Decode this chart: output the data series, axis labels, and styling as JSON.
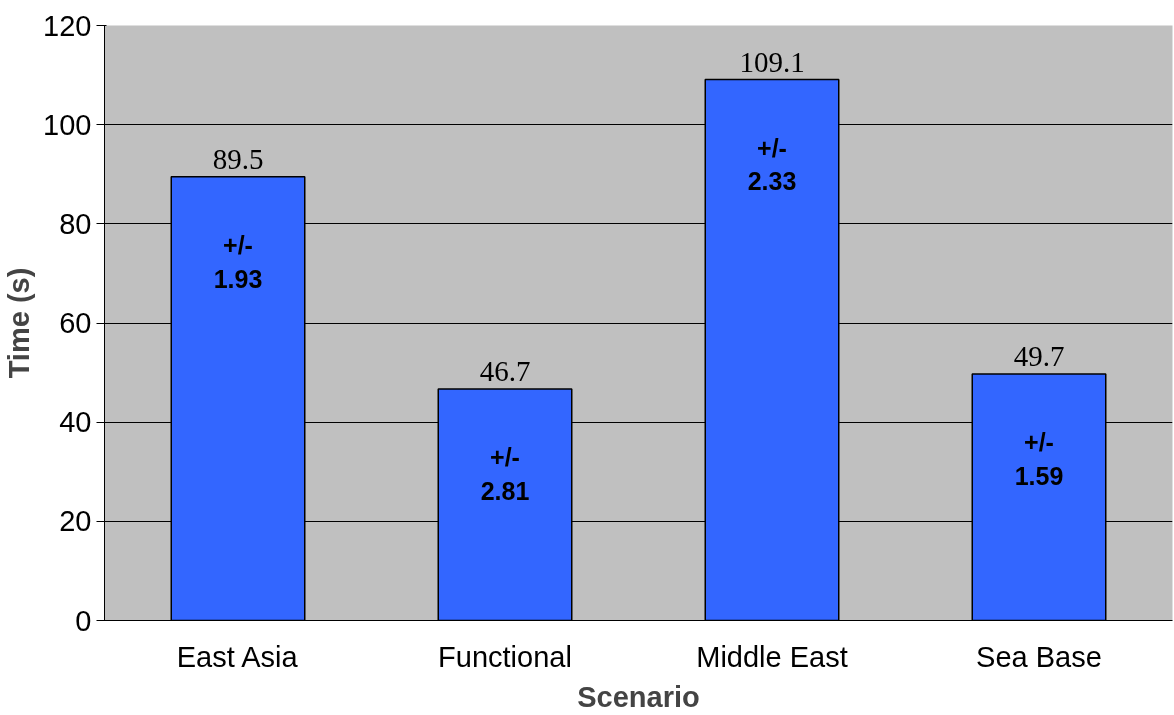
{
  "chart_data": {
    "type": "bar",
    "xlabel": "Scenario",
    "ylabel": "Time (s)",
    "categories": [
      "East Asia",
      "Functional",
      "Middle East",
      "Sea Base"
    ],
    "values": [
      89.5,
      46.7,
      109.1,
      49.7
    ],
    "color": "#3366ff",
    "ylim": [
      0,
      120
    ],
    "yticks": [
      0,
      20,
      40,
      60,
      80,
      100,
      120
    ],
    "grid": "y",
    "data_labels": true,
    "annotations": [
      "+/-\n1.93",
      "+/-\n2.81",
      "+/-\n2.33",
      "+/-\n1.59"
    ]
  }
}
